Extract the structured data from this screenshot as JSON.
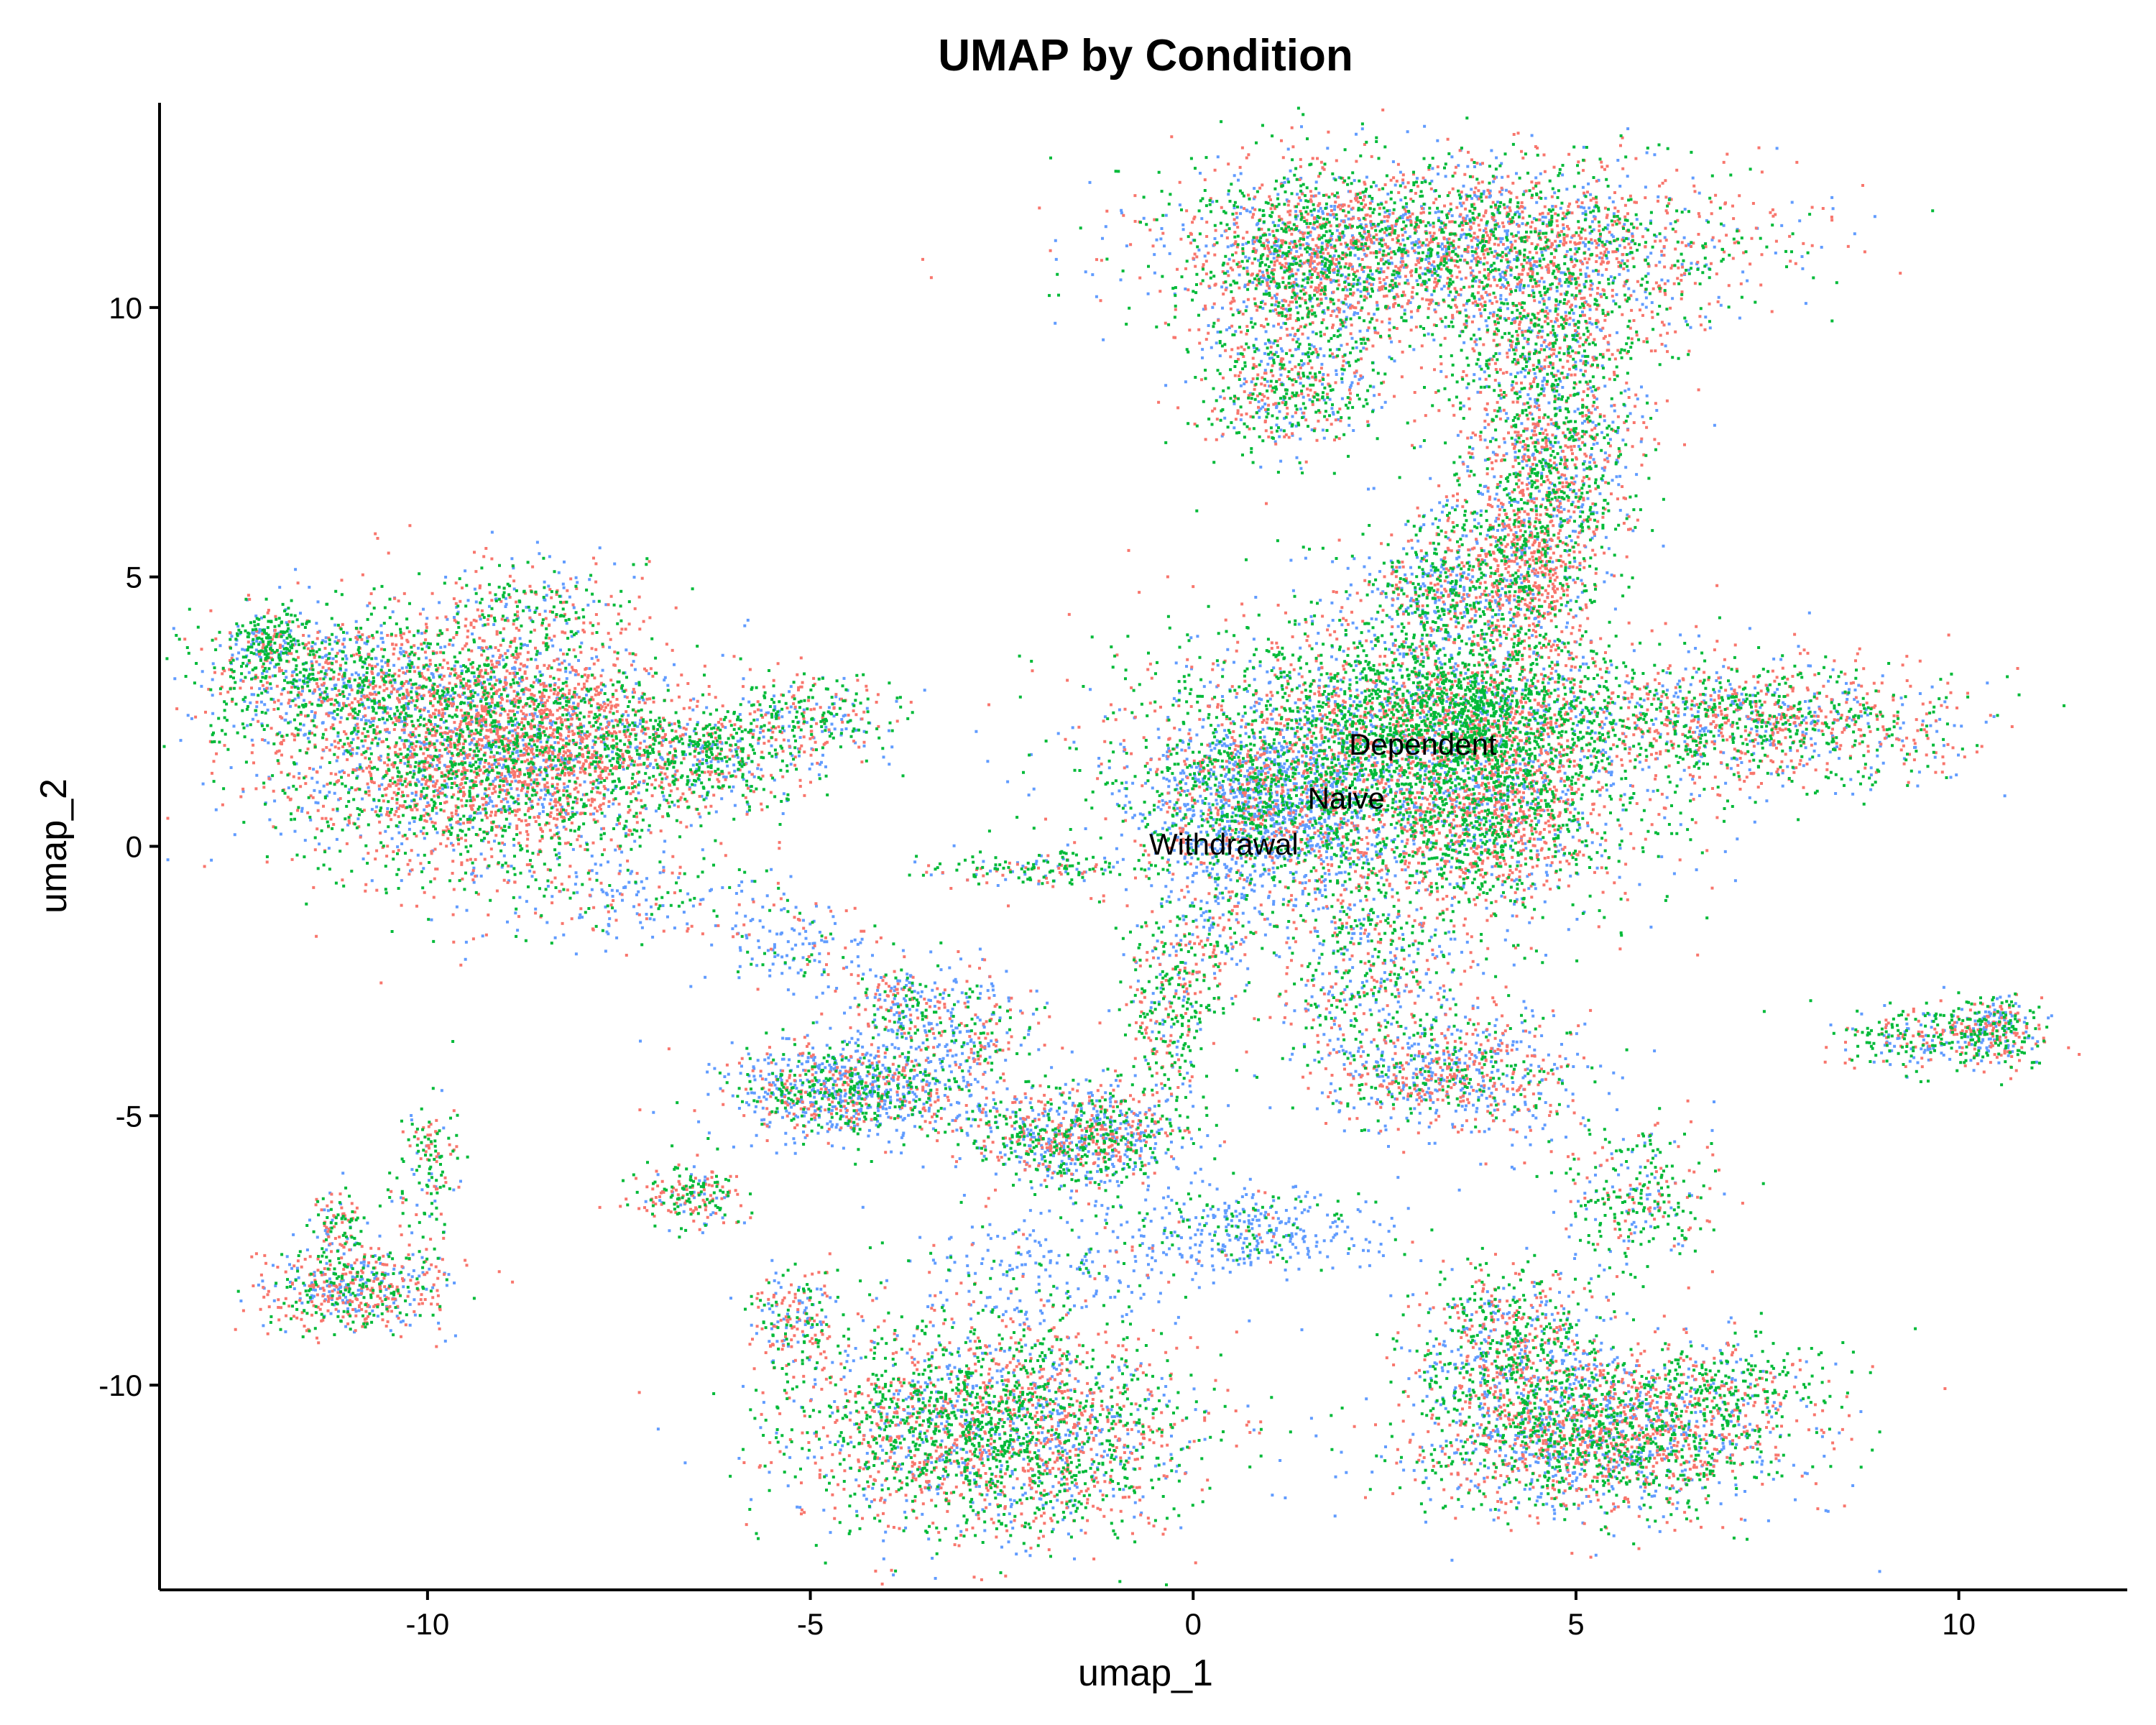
{
  "chart_data": {
    "type": "scatter",
    "title": "UMAP by Condition",
    "xlabel": "umap_1",
    "ylabel": "umap_2",
    "xlim": [
      -13.5,
      12.2
    ],
    "ylim": [
      -13.8,
      13.8
    ],
    "x_ticks": [
      -10,
      -5,
      0,
      5,
      10
    ],
    "y_ticks": [
      -10,
      -5,
      0,
      5,
      10
    ],
    "grid": false,
    "legend": "none",
    "series": [
      {
        "name": "Dependent",
        "color": "#F8766D"
      },
      {
        "name": "Naive",
        "color": "#00BA38"
      },
      {
        "name": "Withdrawal",
        "color": "#619CFF"
      }
    ],
    "group_labels": [
      {
        "text": "Dependent",
        "x": 3.0,
        "y": 1.9
      },
      {
        "text": "Naive",
        "x": 2.0,
        "y": 0.9
      },
      {
        "text": "Withdrawal",
        "x": 0.4,
        "y": 0.05
      }
    ],
    "clusters": [
      {
        "x": 2.6,
        "y": 1.5,
        "sx": 1.7,
        "sy": 1.4,
        "n": 4200,
        "w": [
          0.3,
          0.45,
          0.25
        ]
      },
      {
        "x": 0.9,
        "y": 0.7,
        "sx": 0.7,
        "sy": 0.8,
        "n": 1200,
        "w": [
          0.15,
          0.2,
          0.65
        ]
      },
      {
        "x": 3.5,
        "y": 2.6,
        "sx": 0.9,
        "sy": 0.7,
        "n": 1100,
        "w": [
          0.2,
          0.65,
          0.15
        ]
      },
      {
        "x": 3.9,
        "y": 0.8,
        "sx": 0.6,
        "sy": 0.9,
        "n": 800,
        "w": [
          0.55,
          0.3,
          0.15
        ]
      },
      {
        "x": 3.5,
        "y": 11.2,
        "sx": 1.9,
        "sy": 0.8,
        "n": 2600,
        "w": [
          0.4,
          0.35,
          0.25
        ]
      },
      {
        "x": 1.4,
        "y": 10.8,
        "sx": 0.7,
        "sy": 0.9,
        "n": 900,
        "w": [
          0.4,
          0.35,
          0.25
        ]
      },
      {
        "x": 1.2,
        "y": 8.5,
        "sx": 0.6,
        "sy": 0.6,
        "n": 500,
        "w": [
          0.35,
          0.4,
          0.25
        ]
      },
      {
        "x": 4.6,
        "y": 9.3,
        "sx": 0.7,
        "sy": 1.0,
        "n": 800,
        "w": [
          0.35,
          0.4,
          0.25
        ]
      },
      {
        "x": 4.6,
        "y": 7.0,
        "sx": 0.6,
        "sy": 1.0,
        "n": 900,
        "w": [
          0.35,
          0.4,
          0.25
        ]
      },
      {
        "x": 4.4,
        "y": 5.0,
        "sx": 0.4,
        "sy": 0.8,
        "n": 600,
        "w": [
          0.6,
          0.25,
          0.15
        ]
      },
      {
        "x": 3.3,
        "y": 4.8,
        "sx": 0.6,
        "sy": 0.7,
        "n": 600,
        "w": [
          0.25,
          0.4,
          0.35
        ]
      },
      {
        "x": 7.3,
        "y": 2.3,
        "sx": 1.3,
        "sy": 0.55,
        "n": 1200,
        "w": [
          0.4,
          0.35,
          0.25
        ]
      },
      {
        "x": -9.5,
        "y": 1.9,
        "sx": 1.3,
        "sy": 1.2,
        "n": 3000,
        "w": [
          0.45,
          0.35,
          0.2
        ]
      },
      {
        "x": -8.5,
        "y": 2.0,
        "sx": 0.8,
        "sy": 1.0,
        "n": 1000,
        "w": [
          0.6,
          0.2,
          0.2
        ]
      },
      {
        "x": -11.3,
        "y": 3.2,
        "sx": 0.9,
        "sy": 0.6,
        "n": 700,
        "w": [
          0.2,
          0.5,
          0.3
        ]
      },
      {
        "x": -12.1,
        "y": 3.8,
        "sx": 0.25,
        "sy": 0.25,
        "n": 180,
        "w": [
          0.2,
          0.5,
          0.3
        ]
      },
      {
        "x": -6.5,
        "y": 1.7,
        "sx": 0.7,
        "sy": 0.5,
        "n": 600,
        "w": [
          0.25,
          0.55,
          0.2
        ]
      },
      {
        "x": -5.0,
        "y": 2.4,
        "sx": 0.6,
        "sy": 0.4,
        "n": 300,
        "w": [
          0.3,
          0.4,
          0.3
        ]
      },
      {
        "x": -2.7,
        "y": -10.8,
        "sx": 1.3,
        "sy": 1.0,
        "n": 2600,
        "w": [
          0.35,
          0.4,
          0.25
        ]
      },
      {
        "x": -5.2,
        "y": -8.7,
        "sx": 0.3,
        "sy": 0.5,
        "n": 200,
        "w": [
          0.4,
          0.35,
          0.25
        ]
      },
      {
        "x": 5.3,
        "y": -10.9,
        "sx": 1.2,
        "sy": 0.7,
        "n": 2200,
        "w": [
          0.35,
          0.35,
          0.3
        ]
      },
      {
        "x": 4.1,
        "y": -9.2,
        "sx": 0.6,
        "sy": 0.7,
        "n": 700,
        "w": [
          0.3,
          0.4,
          0.3
        ]
      },
      {
        "x": 5.8,
        "y": -6.5,
        "sx": 0.5,
        "sy": 0.7,
        "n": 300,
        "w": [
          0.3,
          0.5,
          0.2
        ]
      },
      {
        "x": 6.9,
        "y": -10.0,
        "sx": 0.8,
        "sy": 0.5,
        "n": 250,
        "w": [
          0.3,
          0.6,
          0.1
        ]
      },
      {
        "x": -4.6,
        "y": -4.5,
        "sx": 0.8,
        "sy": 0.45,
        "n": 1000,
        "w": [
          0.25,
          0.25,
          0.5
        ]
      },
      {
        "x": -3.0,
        "y": -3.5,
        "sx": 0.5,
        "sy": 0.7,
        "n": 300,
        "w": [
          0.25,
          0.25,
          0.5
        ]
      },
      {
        "x": -1.5,
        "y": -5.4,
        "sx": 0.7,
        "sy": 0.45,
        "n": 900,
        "w": [
          0.3,
          0.35,
          0.35
        ]
      },
      {
        "x": -0.3,
        "y": -3.0,
        "sx": 0.3,
        "sy": 1.0,
        "n": 350,
        "w": [
          0.3,
          0.5,
          0.2
        ]
      },
      {
        "x": 3.3,
        "y": -4.2,
        "sx": 0.9,
        "sy": 0.6,
        "n": 800,
        "w": [
          0.35,
          0.25,
          0.4
        ]
      },
      {
        "x": 2.3,
        "y": -2.3,
        "sx": 0.6,
        "sy": 0.8,
        "n": 400,
        "w": [
          0.25,
          0.35,
          0.4
        ]
      },
      {
        "x": 10.4,
        "y": -3.4,
        "sx": 0.35,
        "sy": 0.3,
        "n": 350,
        "w": [
          0.3,
          0.4,
          0.3
        ]
      },
      {
        "x": 9.3,
        "y": -3.5,
        "sx": 0.5,
        "sy": 0.3,
        "n": 200,
        "w": [
          0.3,
          0.5,
          0.2
        ]
      },
      {
        "x": -11.0,
        "y": -8.2,
        "sx": 0.6,
        "sy": 0.4,
        "n": 550,
        "w": [
          0.45,
          0.3,
          0.25
        ]
      },
      {
        "x": -11.2,
        "y": -7.1,
        "sx": 0.2,
        "sy": 0.35,
        "n": 120,
        "w": [
          0.4,
          0.35,
          0.25
        ]
      },
      {
        "x": -6.6,
        "y": -6.5,
        "sx": 0.35,
        "sy": 0.3,
        "n": 200,
        "w": [
          0.4,
          0.45,
          0.15
        ]
      },
      {
        "x": 0.7,
        "y": -7.1,
        "sx": 0.8,
        "sy": 0.4,
        "n": 350,
        "w": [
          0.05,
          0.25,
          0.7
        ]
      },
      {
        "x": -1.7,
        "y": -7.8,
        "sx": 1.0,
        "sy": 0.6,
        "n": 250,
        "w": [
          0.1,
          0.15,
          0.75
        ]
      },
      {
        "x": -5.2,
        "y": -1.8,
        "sx": 0.6,
        "sy": 0.4,
        "n": 150,
        "w": [
          0.2,
          0.2,
          0.6
        ]
      },
      {
        "x": -7.3,
        "y": -1.0,
        "sx": 0.9,
        "sy": 0.5,
        "n": 200,
        "w": [
          0.2,
          0.3,
          0.5
        ]
      },
      {
        "x": -8.5,
        "y": 4.6,
        "sx": 0.7,
        "sy": 0.4,
        "n": 150,
        "w": [
          0.25,
          0.45,
          0.3
        ]
      },
      {
        "x": -2.0,
        "y": -0.4,
        "sx": 0.8,
        "sy": 0.15,
        "n": 150,
        "w": [
          0.2,
          0.5,
          0.3
        ]
      },
      {
        "x": 0.3,
        "y": -1.5,
        "sx": 0.3,
        "sy": 0.6,
        "n": 120,
        "w": [
          0.4,
          0.2,
          0.4
        ]
      },
      {
        "x": -3.9,
        "y": -3.0,
        "sx": 0.3,
        "sy": 0.4,
        "n": 180,
        "w": [
          0.3,
          0.3,
          0.4
        ]
      },
      {
        "x": -10.0,
        "y": -6.0,
        "sx": 0.2,
        "sy": 0.7,
        "n": 140,
        "w": [
          0.3,
          0.5,
          0.2
        ]
      }
    ]
  }
}
